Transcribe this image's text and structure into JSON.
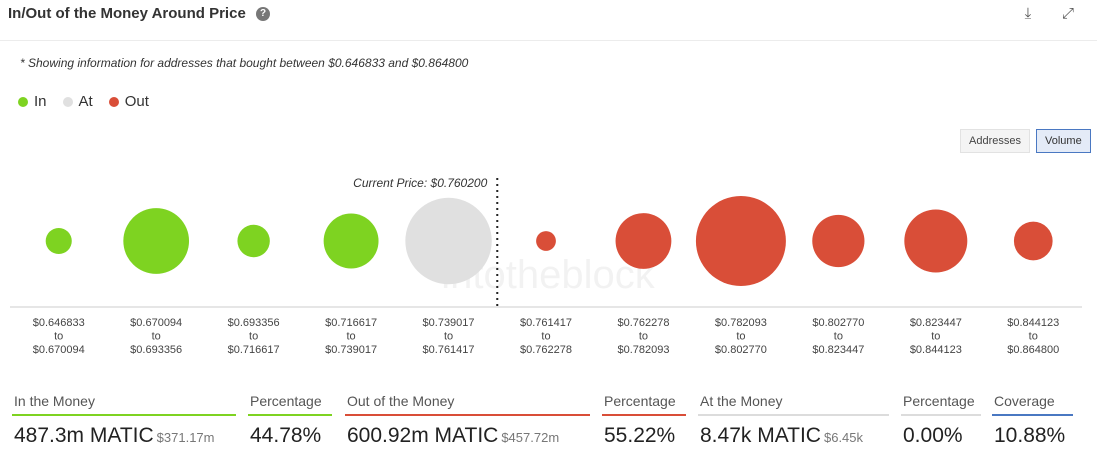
{
  "header": {
    "title": "In/Out of the Money Around Price",
    "help_glyph": "?",
    "download_glyph": "⤓",
    "expand_glyph": "⤢"
  },
  "note": "* Showing information for addresses that bought between $0.646833 and $0.864800",
  "legend": [
    {
      "label": "In",
      "color": "#7ed321"
    },
    {
      "label": "At",
      "color": "#e0e0e0"
    },
    {
      "label": "Out",
      "color": "#d94e38"
    }
  ],
  "toggles": [
    {
      "label": "Addresses",
      "active": false
    },
    {
      "label": "Volume",
      "active": true
    }
  ],
  "watermark": "intotheblock",
  "chart_data": {
    "type": "scatter",
    "current_price_label": "Current Price: $0.760200",
    "marker_after_bucket": 4,
    "colors": {
      "in": "#7ed321",
      "at": "#e0e0e0",
      "out": "#d94e38"
    },
    "buckets": [
      {
        "from": "$0.646833",
        "to": "$0.670094",
        "status": "in",
        "relative_size": 0.29
      },
      {
        "from": "$0.670094",
        "to": "$0.693356",
        "status": "in",
        "relative_size": 0.73
      },
      {
        "from": "$0.693356",
        "to": "$0.716617",
        "status": "in",
        "relative_size": 0.36
      },
      {
        "from": "$0.716617",
        "to": "$0.739017",
        "status": "in",
        "relative_size": 0.61
      },
      {
        "from": "$0.739017",
        "to": "$0.761417",
        "status": "at",
        "relative_size": 0.96
      },
      {
        "from": "$0.761417",
        "to": "$0.762278",
        "status": "out",
        "relative_size": 0.22
      },
      {
        "from": "$0.762278",
        "to": "$0.782093",
        "status": "out",
        "relative_size": 0.62
      },
      {
        "from": "$0.782093",
        "to": "$0.802770",
        "status": "out",
        "relative_size": 1.0
      },
      {
        "from": "$0.802770",
        "to": "$0.823447",
        "status": "out",
        "relative_size": 0.58
      },
      {
        "from": "$0.823447",
        "to": "$0.844123",
        "status": "out",
        "relative_size": 0.7
      },
      {
        "from": "$0.844123",
        "to": "$0.864800",
        "status": "out",
        "relative_size": 0.43
      }
    ],
    "range_word": "to"
  },
  "stats": [
    {
      "label": "In the Money",
      "value": "487.3m MATIC",
      "sub": "$371.17m",
      "color": "#7ed321"
    },
    {
      "label": "Percentage",
      "value": "44.78%",
      "sub": "",
      "color": "#7ed321"
    },
    {
      "label": "Out of the Money",
      "value": "600.92m MATIC",
      "sub": "$457.72m",
      "color": "#d94e38"
    },
    {
      "label": "Percentage",
      "value": "55.22%",
      "sub": "",
      "color": "#d94e38"
    },
    {
      "label": "At the Money",
      "value": "8.47k MATIC",
      "sub": "$6.45k",
      "color": "#dcdcdc"
    },
    {
      "label": "Percentage",
      "value": "0.00%",
      "sub": "",
      "color": "#dcdcdc"
    },
    {
      "label": "Coverage",
      "value": "10.88%",
      "sub": "",
      "color": "#4a78c2"
    }
  ]
}
